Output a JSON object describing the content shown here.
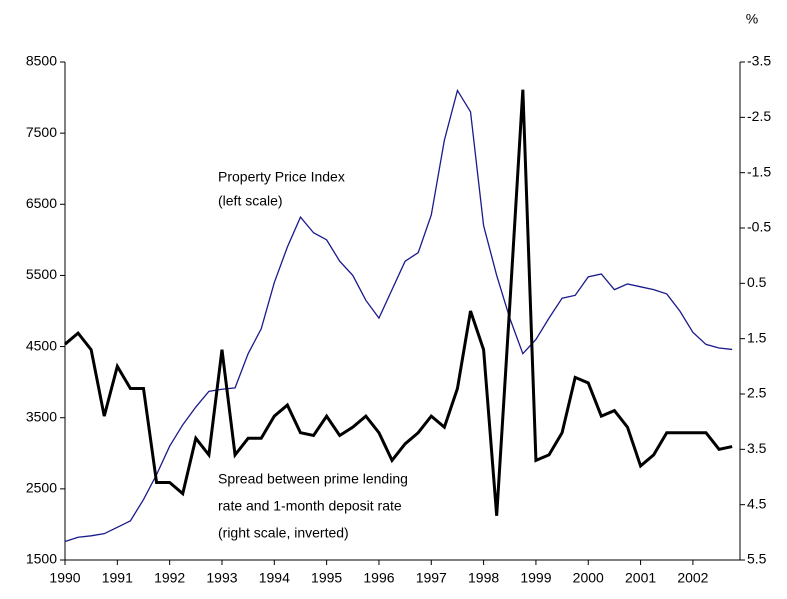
{
  "chart_data": {
    "type": "line",
    "annotations": [
      "Property Price Index",
      "(left scale)",
      "Spread between prime lending",
      "rate and 1-month deposit rate",
      "(right scale, inverted)"
    ],
    "y2_unit": "%",
    "x": [
      1990,
      1990.25,
      1990.5,
      1990.75,
      1991,
      1991.25,
      1991.5,
      1991.75,
      1992,
      1992.25,
      1992.5,
      1992.75,
      1993,
      1993.25,
      1993.5,
      1993.75,
      1994,
      1994.25,
      1994.5,
      1994.75,
      1995,
      1995.25,
      1995.5,
      1995.75,
      1996,
      1996.25,
      1996.5,
      1996.75,
      1997,
      1997.25,
      1997.5,
      1997.75,
      1998,
      1998.25,
      1998.5,
      1998.75,
      1999,
      1999.25,
      1999.5,
      1999.75,
      2000,
      2000.25,
      2000.5,
      2000.75,
      2001,
      2001.25,
      2001.5,
      2001.75,
      2002,
      2002.25,
      2002.5,
      2002.75
    ],
    "xlim": [
      1990,
      2002.9
    ],
    "xticks": [
      1990,
      1991,
      1992,
      1993,
      1994,
      1995,
      1996,
      1997,
      1998,
      1999,
      2000,
      2001,
      2002
    ],
    "ylim": [
      1500,
      8500
    ],
    "yticks": [
      1500,
      2500,
      3500,
      4500,
      5500,
      6500,
      7500,
      8500
    ],
    "y2lim": [
      -3.5,
      5.5
    ],
    "y2_inverted": true,
    "y2ticks": [
      -3.5,
      -2.5,
      -1.5,
      -0.5,
      0.5,
      1.5,
      2.5,
      3.5,
      4.5,
      5.5
    ],
    "series": [
      {
        "color": "#1a1a8c",
        "width": 1.3,
        "values": [
          1760,
          1820,
          1840,
          1870,
          1960,
          2050,
          2350,
          2700,
          3100,
          3400,
          3650,
          3870,
          3900,
          3920,
          4400,
          4750,
          5400,
          5900,
          6320,
          6100,
          6000,
          5700,
          5500,
          5150,
          4900,
          5300,
          5700,
          5820,
          6350,
          7400,
          8100,
          7800,
          6200,
          5500,
          4900,
          4400,
          4600,
          4900,
          5180,
          5220,
          5480,
          5520,
          5300,
          5380,
          5340,
          5300,
          5240,
          5000,
          4700,
          4530,
          4480,
          4460
        ]
      },
      {
        "color": "#000000",
        "width": 3,
        "axis": "y2",
        "values": [
          1.6,
          1.4,
          1.7,
          2.9,
          2.0,
          2.4,
          2.4,
          4.1,
          4.1,
          4.3,
          3.3,
          3.6,
          1.7,
          3.6,
          3.3,
          3.3,
          2.9,
          2.7,
          3.2,
          3.25,
          2.9,
          3.25,
          3.1,
          2.9,
          3.2,
          3.7,
          3.4,
          3.2,
          2.9,
          3.1,
          2.4,
          1.0,
          1.7,
          4.7,
          0.9,
          -3.0,
          3.7,
          3.6,
          3.2,
          2.2,
          2.3,
          2.9,
          2.8,
          3.1,
          3.8,
          3.6,
          3.2,
          3.2,
          3.2,
          3.2,
          3.5,
          3.45
        ]
      }
    ]
  }
}
